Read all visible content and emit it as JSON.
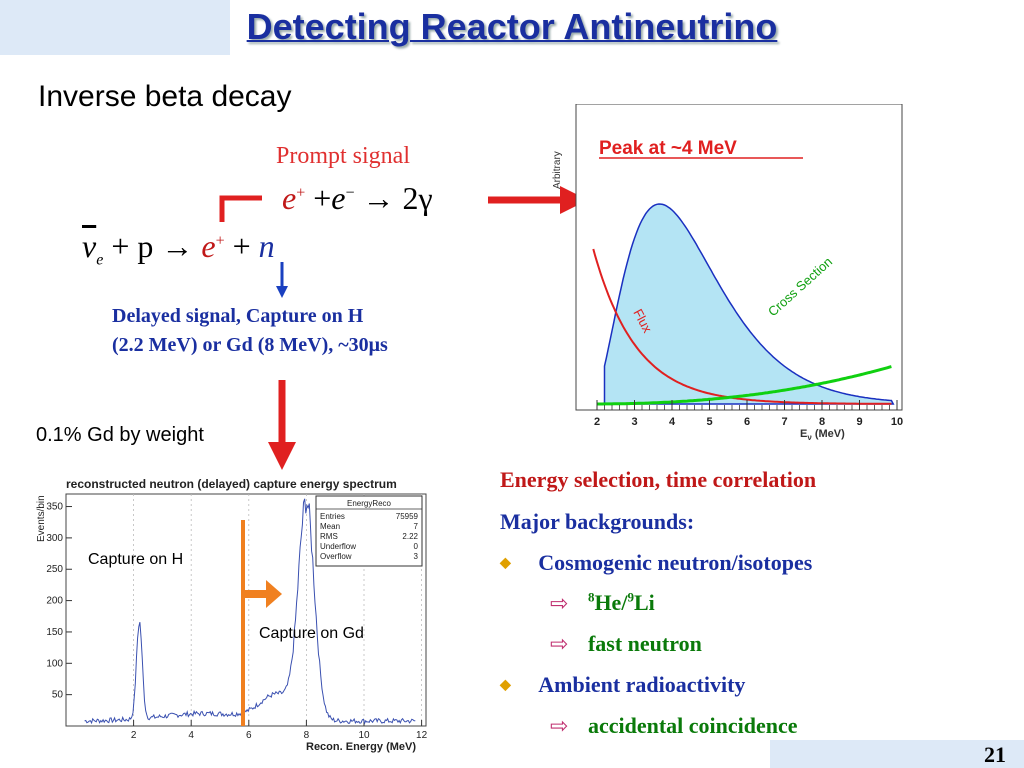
{
  "slide": {
    "title": "Detecting Reactor Antineutrino",
    "subtitle": "Inverse beta decay",
    "prompt_label": "Prompt signal",
    "prompt_eq": {
      "e1": "e",
      "sup1": "+",
      "plus": "+",
      "e2": "e",
      "sup2": "−",
      "arrow": "→",
      "gamma": "2γ"
    },
    "main_eq": {
      "nu": "ν",
      "nusub": "e",
      "p": "+ p",
      "arrow": "→",
      "e": "e",
      "esup": "+",
      "plus": "+",
      "n": "n"
    },
    "delayed_line1": "Delayed signal, Capture on H",
    "delayed_line2": "(2.2 MeV)  or Gd (8 MeV), ~30μs",
    "gd_weight": "0.1% Gd by weight",
    "page_number": "21"
  },
  "spectrum_plot": {
    "peak_label": "Peak at ~4 MeV",
    "ylabel": "Arbitrary",
    "xlabel": "E",
    "xlabel_sub": "ν",
    "xlabel_unit": "(MeV)",
    "flux_label": "Flux",
    "cross_label": "Cross Section",
    "xticks": [
      "2",
      "3",
      "4",
      "5",
      "6",
      "7",
      "8",
      "9",
      "10"
    ]
  },
  "capture_plot": {
    "title": "reconstructed neutron (delayed) capture energy spectrum",
    "ylabel": "Events/bin",
    "xlabel": "Recon. Energy (MeV)",
    "stats_title": "EnergyReco",
    "stats": [
      {
        "k": "Entries",
        "v": "75959"
      },
      {
        "k": "Mean",
        "v": "7"
      },
      {
        "k": "RMS",
        "v": "2.22"
      },
      {
        "k": "Underflow",
        "v": "0"
      },
      {
        "k": "Overflow",
        "v": "3"
      }
    ],
    "yticks": [
      "350",
      "300",
      "250",
      "200",
      "150",
      "100",
      "50"
    ],
    "xticks": [
      "2",
      "4",
      "6",
      "8",
      "10",
      "12"
    ],
    "capture_h": "Capture on H",
    "capture_gd": "Capture on Gd"
  },
  "right_list": {
    "line1": "Energy selection,  time correlation",
    "line2": "Major backgrounds:",
    "b1": "Cosmogenic neutron/isotopes",
    "s1_sup1": "8",
    "s1_a": "He/",
    "s1_sup2": "9",
    "s1_b": "Li",
    "s2": "fast neutron",
    "b2": "Ambient radioactivity",
    "s3": "accidental coincidence"
  }
}
